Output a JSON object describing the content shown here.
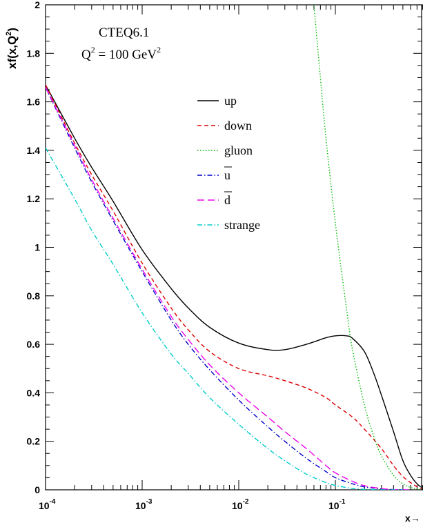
{
  "chart_data": {
    "type": "line",
    "title_lines": [
      "CTEQ6.1",
      "Q² = 100 GeV²"
    ],
    "annotation": {
      "line1": "CTEQ6.1",
      "q": "Q",
      "q_sup": "2",
      "q_rest": " = 100 GeV",
      "gev_sup": "2"
    },
    "ylabel": {
      "main": "xf(x,Q",
      "sup": "2",
      "close": ")"
    },
    "xlabel": "x→",
    "x_scale": "log",
    "xlim": [
      0.0001,
      1
    ],
    "ylim": [
      0,
      2
    ],
    "x_ticks": [
      {
        "value": 0.0001,
        "base": "10",
        "exp": "-4"
      },
      {
        "value": 0.001,
        "base": "10",
        "exp": "-3"
      },
      {
        "value": 0.01,
        "base": "10",
        "exp": "-2"
      },
      {
        "value": 0.1,
        "base": "10",
        "exp": "-1"
      }
    ],
    "y_ticks": [
      {
        "value": 0,
        "label": "0"
      },
      {
        "value": 0.2,
        "label": "0.2"
      },
      {
        "value": 0.4,
        "label": "0.4"
      },
      {
        "value": 0.6,
        "label": "0.6"
      },
      {
        "value": 0.8,
        "label": "0.8"
      },
      {
        "value": 1,
        "label": "1"
      },
      {
        "value": 1.2,
        "label": "1.2"
      },
      {
        "value": 1.4,
        "label": "1.4"
      },
      {
        "value": 1.6,
        "label": "1.6"
      },
      {
        "value": 1.8,
        "label": "1.8"
      },
      {
        "value": 2,
        "label": "2"
      }
    ],
    "grid": false,
    "legend_position": "upper-center",
    "series": [
      {
        "name": "up",
        "legend": {
          "text": "up"
        },
        "color": "#000000",
        "style": "solid",
        "x": [
          0.0001,
          0.0002,
          0.0003,
          0.0005,
          0.001,
          0.002,
          0.003,
          0.005,
          0.01,
          0.02,
          0.03,
          0.05,
          0.08,
          0.1,
          0.13,
          0.15,
          0.2,
          0.25,
          0.3,
          0.4,
          0.5,
          0.6,
          0.7,
          0.8,
          0.9
        ],
        "y": [
          1.67,
          1.45,
          1.33,
          1.19,
          0.99,
          0.83,
          0.75,
          0.67,
          0.605,
          0.578,
          0.578,
          0.6,
          0.627,
          0.635,
          0.635,
          0.625,
          0.57,
          0.48,
          0.39,
          0.24,
          0.12,
          0.06,
          0.025,
          0.008,
          0.002
        ]
      },
      {
        "name": "down",
        "legend": {
          "text": "down"
        },
        "color": "#dd0000",
        "style": "dashed",
        "x": [
          0.0001,
          0.0002,
          0.0003,
          0.0005,
          0.001,
          0.002,
          0.003,
          0.005,
          0.01,
          0.02,
          0.03,
          0.05,
          0.08,
          0.1,
          0.15,
          0.2,
          0.3,
          0.4,
          0.5,
          0.6,
          0.7,
          0.8,
          0.9
        ],
        "y": [
          1.67,
          1.43,
          1.3,
          1.15,
          0.935,
          0.75,
          0.66,
          0.57,
          0.5,
          0.47,
          0.45,
          0.42,
          0.38,
          0.35,
          0.3,
          0.25,
          0.17,
          0.1,
          0.055,
          0.03,
          0.013,
          0.004,
          0.001
        ]
      },
      {
        "name": "gluon",
        "legend": {
          "text": "gluon"
        },
        "color": "#00bb00",
        "style": "dotted",
        "x": [
          0.06,
          0.07,
          0.08,
          0.1,
          0.13,
          0.15,
          0.2,
          0.25,
          0.3,
          0.4,
          0.5,
          0.6,
          0.7,
          0.8,
          0.9
        ],
        "y": [
          2.0,
          1.7,
          1.45,
          1.1,
          0.75,
          0.58,
          0.35,
          0.22,
          0.14,
          0.06,
          0.025,
          0.01,
          0.004,
          0.001,
          0.0
        ]
      },
      {
        "name": "ubar",
        "legend": {
          "text": "u",
          "overbar": true
        },
        "color": "#0000cc",
        "style": "dashdot",
        "x": [
          0.0001,
          0.0002,
          0.0003,
          0.0005,
          0.001,
          0.002,
          0.003,
          0.005,
          0.01,
          0.02,
          0.03,
          0.05,
          0.08,
          0.1,
          0.15,
          0.2,
          0.3,
          0.4,
          0.5,
          0.6
        ],
        "y": [
          1.66,
          1.41,
          1.27,
          1.11,
          0.9,
          0.7,
          0.6,
          0.495,
          0.37,
          0.26,
          0.2,
          0.13,
          0.075,
          0.05,
          0.025,
          0.012,
          0.004,
          0.001,
          0.0,
          0.0
        ]
      },
      {
        "name": "dbar",
        "legend": {
          "text": "d",
          "overbar": true
        },
        "color": "#ee00ee",
        "style": "longdash",
        "x": [
          0.0001,
          0.0002,
          0.0003,
          0.0005,
          0.001,
          0.002,
          0.003,
          0.005,
          0.01,
          0.02,
          0.03,
          0.05,
          0.08,
          0.1,
          0.15,
          0.2,
          0.3,
          0.4,
          0.5,
          0.6
        ],
        "y": [
          1.66,
          1.42,
          1.28,
          1.12,
          0.91,
          0.715,
          0.62,
          0.515,
          0.4,
          0.3,
          0.24,
          0.17,
          0.1,
          0.07,
          0.035,
          0.017,
          0.005,
          0.001,
          0.0,
          0.0
        ]
      },
      {
        "name": "strange",
        "legend": {
          "text": "strange"
        },
        "color": "#00cccc",
        "style": "dashdot",
        "x": [
          0.0001,
          0.0002,
          0.0003,
          0.0005,
          0.001,
          0.002,
          0.003,
          0.005,
          0.01,
          0.02,
          0.03,
          0.05,
          0.08,
          0.1,
          0.15,
          0.2,
          0.3,
          0.4,
          0.5
        ],
        "y": [
          1.41,
          1.2,
          1.07,
          0.93,
          0.73,
          0.56,
          0.48,
          0.38,
          0.27,
          0.17,
          0.12,
          0.065,
          0.03,
          0.018,
          0.006,
          0.002,
          0.0,
          0.0,
          0.0
        ]
      }
    ]
  }
}
